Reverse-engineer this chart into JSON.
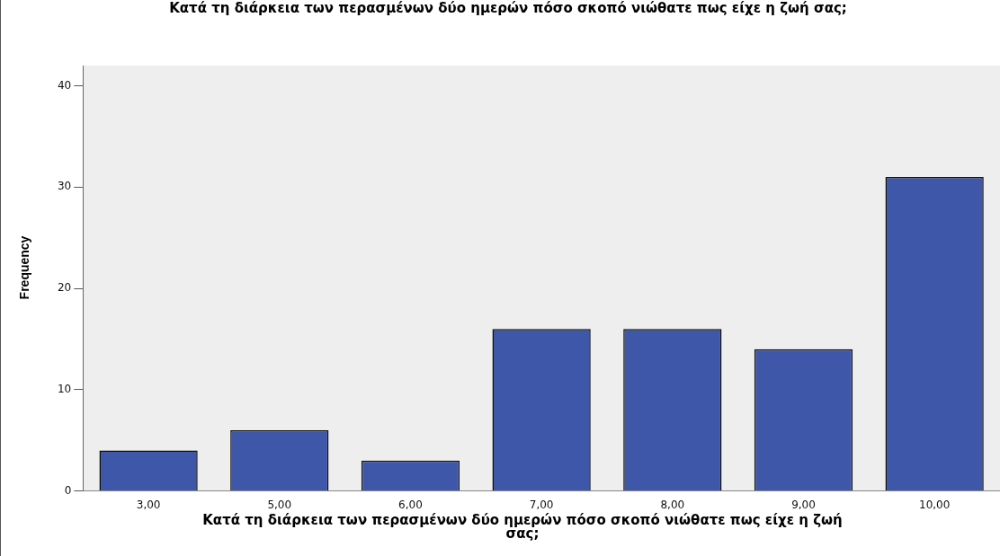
{
  "chart_data": {
    "type": "bar",
    "title": "Κατά τη διάρκεια των περασμένων δύο ημερών πόσο σκοπό νιώθατε πως είχε η ζωή σας;",
    "xlabel": "Κατά τη διάρκεια των περασμένων δύο ημερών πόσο σκοπό νιώθατε πως είχε η ζωή σας;",
    "ylabel": "Frequency",
    "categories": [
      "3,00",
      "5,00",
      "6,00",
      "7,00",
      "8,00",
      "9,00",
      "10,00"
    ],
    "values": [
      4,
      6,
      3,
      16,
      16,
      14,
      31
    ],
    "color": "#3e57a9",
    "ylim": [
      0,
      42
    ],
    "yticks": [
      0,
      10,
      20,
      30,
      40
    ],
    "grid": false,
    "legend": false
  }
}
